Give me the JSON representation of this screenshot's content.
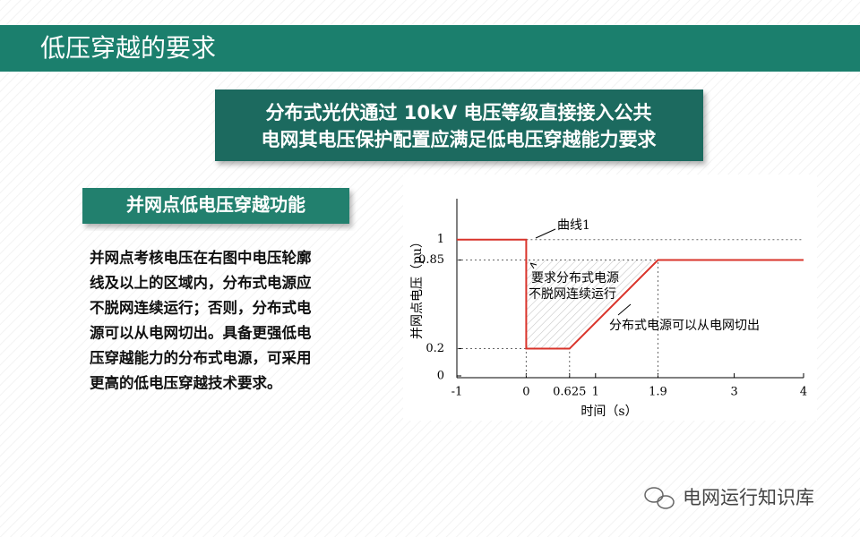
{
  "header": {
    "title": "低压穿越的要求"
  },
  "callout": {
    "lines": [
      "分布式光伏通过 10kV 电压等级直接接入公共",
      "电网其电压保护配置应满足低电压穿越能力要求"
    ]
  },
  "section": {
    "title": "并网点低电压穿越功能",
    "lines": [
      "并网点考核电压在右图中电压轮廓",
      "线及以上的区域内，分布式电源应",
      "不脱网连续运行；否则，分布式电",
      "源可以从电网切出。具备更强低电",
      "压穿越能力的分布式电源，可采用",
      "更高的低电压穿越技术要求。"
    ]
  },
  "chart_data": {
    "type": "line",
    "x_label": "时间（s）",
    "y_label": "并网点电压（pu）",
    "x": [
      -1,
      0,
      0,
      0.625,
      1.9,
      4
    ],
    "series": [
      {
        "name": "曲线1",
        "color": "#d9342b",
        "values": [
          1,
          1,
          0.2,
          0.2,
          0.85,
          0.85
        ]
      }
    ],
    "xlim": [
      -1,
      4
    ],
    "xticks": [
      -1,
      0,
      0.625,
      1,
      1.9,
      3,
      4
    ],
    "ylim": [
      0,
      1.3
    ],
    "yticks": [
      0,
      0.2,
      0.85,
      1
    ],
    "annotations": {
      "keep": [
        "要求分布式电源",
        "不脱网连续运行"
      ],
      "trip": "分布式电源可以从电网切出"
    }
  },
  "watermark": "电网运行知识库"
}
